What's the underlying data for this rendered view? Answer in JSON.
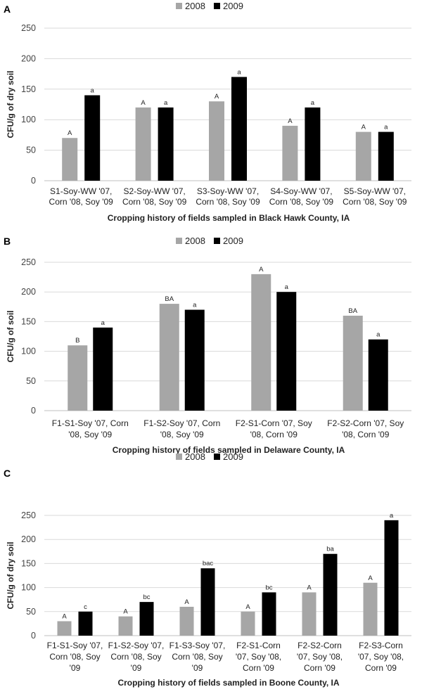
{
  "chart_data": [
    {
      "type": "bar",
      "panel": "A",
      "legend": [
        "2008",
        "2009"
      ],
      "colors": [
        "#a6a6a6",
        "#000000"
      ],
      "ylabel": "CFU/g of dry soil",
      "xlabel": "Cropping history of fields sampled in Black Hawk County, IA",
      "ylim": [
        0,
        250
      ],
      "yticks": [
        0,
        50,
        100,
        150,
        200,
        250
      ],
      "categories": [
        [
          "S1-Soy-WW '07,",
          "Corn '08, Soy '09"
        ],
        [
          "S2-Soy-WW '07,",
          "Corn '08, Soy '09"
        ],
        [
          "S3-Soy-WW '07,",
          "Corn '08, Soy '09"
        ],
        [
          "S4-Soy-WW '07,",
          "Corn '08, Soy '09"
        ],
        [
          "S5-Soy-WW '07,",
          "Corn '08, Soy '09"
        ]
      ],
      "series": [
        {
          "name": "2008",
          "values": [
            70,
            120,
            130,
            90,
            80
          ],
          "labels": [
            "A",
            "A",
            "A",
            "A",
            "A"
          ]
        },
        {
          "name": "2009",
          "values": [
            140,
            120,
            170,
            120,
            80
          ],
          "labels": [
            "a",
            "a",
            "a",
            "a",
            "a"
          ]
        }
      ]
    },
    {
      "type": "bar",
      "panel": "B",
      "legend": [
        "2008",
        "2009"
      ],
      "colors": [
        "#a6a6a6",
        "#000000"
      ],
      "ylabel": "CFU/g of soil",
      "xlabel": "Cropping history of fields sampled in Delaware County, IA",
      "ylim": [
        0,
        250
      ],
      "yticks": [
        0,
        50,
        100,
        150,
        200,
        250
      ],
      "categories": [
        [
          "F1-S1-Soy '07, Corn",
          "'08, Soy '09"
        ],
        [
          "F1-S2-Soy '07, Corn",
          "'08, Soy '09"
        ],
        [
          "F2-S1-Corn '07, Soy",
          "'08, Corn '09"
        ],
        [
          "F2-S2-Corn '07, Soy",
          "'08, Corn '09"
        ]
      ],
      "series": [
        {
          "name": "2008",
          "values": [
            110,
            180,
            230,
            160
          ],
          "labels": [
            "B",
            "BA",
            "A",
            "BA"
          ]
        },
        {
          "name": "2009",
          "values": [
            140,
            170,
            200,
            120
          ],
          "labels": [
            "a",
            "a",
            "a",
            "a"
          ]
        }
      ]
    },
    {
      "type": "bar",
      "panel": "C",
      "legend": [
        "2008",
        "2009"
      ],
      "colors": [
        "#a6a6a6",
        "#000000"
      ],
      "ylabel": "CFU/g of dry soil",
      "xlabel": "Cropping history of fields sampled in Boone County, IA",
      "ylim": [
        0,
        250
      ],
      "yticks": [
        0,
        50,
        100,
        150,
        200,
        250
      ],
      "categories": [
        [
          "F1-S1-Soy '07,",
          "Corn '08, Soy",
          "'09"
        ],
        [
          "F1-S2-Soy '07,",
          "Corn '08, Soy",
          "'09"
        ],
        [
          "F1-S3-Soy '07,",
          "Corn '08, Soy",
          "'09"
        ],
        [
          "F2-S1-Corn",
          "'07, Soy '08,",
          "Corn '09"
        ],
        [
          "F2-S2-Corn",
          "'07, Soy '08,",
          "Corn '09"
        ],
        [
          "F2-S3-Corn",
          "'07, Soy '08,",
          "Corn '09"
        ]
      ],
      "series": [
        {
          "name": "2008",
          "values": [
            30,
            40,
            60,
            50,
            90,
            110
          ],
          "labels": [
            "A",
            "A",
            "A",
            "A",
            "A",
            "A"
          ]
        },
        {
          "name": "2009",
          "values": [
            50,
            70,
            140,
            90,
            170,
            240
          ],
          "labels": [
            "c",
            "bc",
            "bac",
            "bc",
            "ba",
            "a"
          ]
        }
      ]
    }
  ]
}
